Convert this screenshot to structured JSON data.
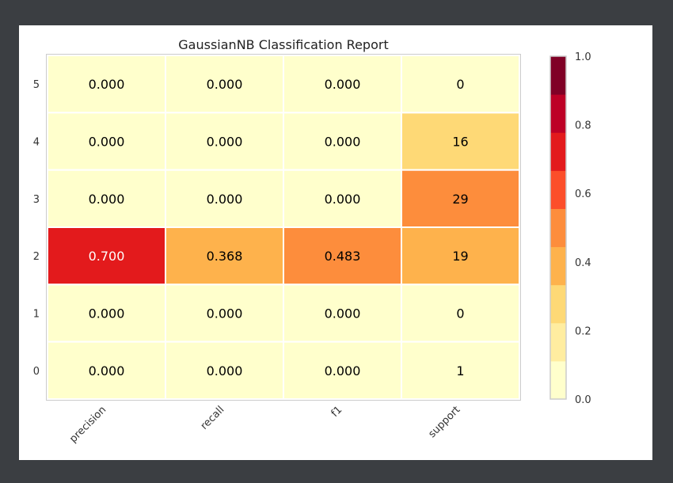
{
  "chart_data": {
    "type": "heatmap",
    "title": "GaussianNB Classification Report",
    "xlabel": "",
    "ylabel": "",
    "columns": [
      "precision",
      "recall",
      "f1",
      "support"
    ],
    "rows": [
      "5",
      "4",
      "3",
      "2",
      "1",
      "0"
    ],
    "cells": [
      [
        "0.000",
        "0.000",
        "0.000",
        "0"
      ],
      [
        "0.000",
        "0.000",
        "0.000",
        "16"
      ],
      [
        "0.000",
        "0.000",
        "0.000",
        "29"
      ],
      [
        "0.700",
        "0.368",
        "0.483",
        "19"
      ],
      [
        "0.000",
        "0.000",
        "0.000",
        "0"
      ],
      [
        "0.000",
        "0.000",
        "0.000",
        "1"
      ]
    ],
    "values": [
      [
        0.0,
        0.0,
        0.0,
        0.0
      ],
      [
        0.0,
        0.0,
        0.0,
        0.328
      ],
      [
        0.0,
        0.0,
        0.0,
        0.5
      ],
      [
        0.7,
        0.368,
        0.483,
        0.351
      ],
      [
        0.0,
        0.0,
        0.0,
        0.0
      ],
      [
        0.0,
        0.0,
        0.0,
        0.017
      ]
    ],
    "colorbar": {
      "range": [
        0.0,
        1.0
      ],
      "ticks": [
        "0.0",
        "0.2",
        "0.4",
        "0.6",
        "0.8",
        "1.0"
      ],
      "colors": [
        "#ffffcc",
        "#ffeda0",
        "#fed976",
        "#feb24c",
        "#fd8d3c",
        "#fc4e2a",
        "#e31a1c",
        "#bd0026",
        "#800026"
      ]
    }
  }
}
